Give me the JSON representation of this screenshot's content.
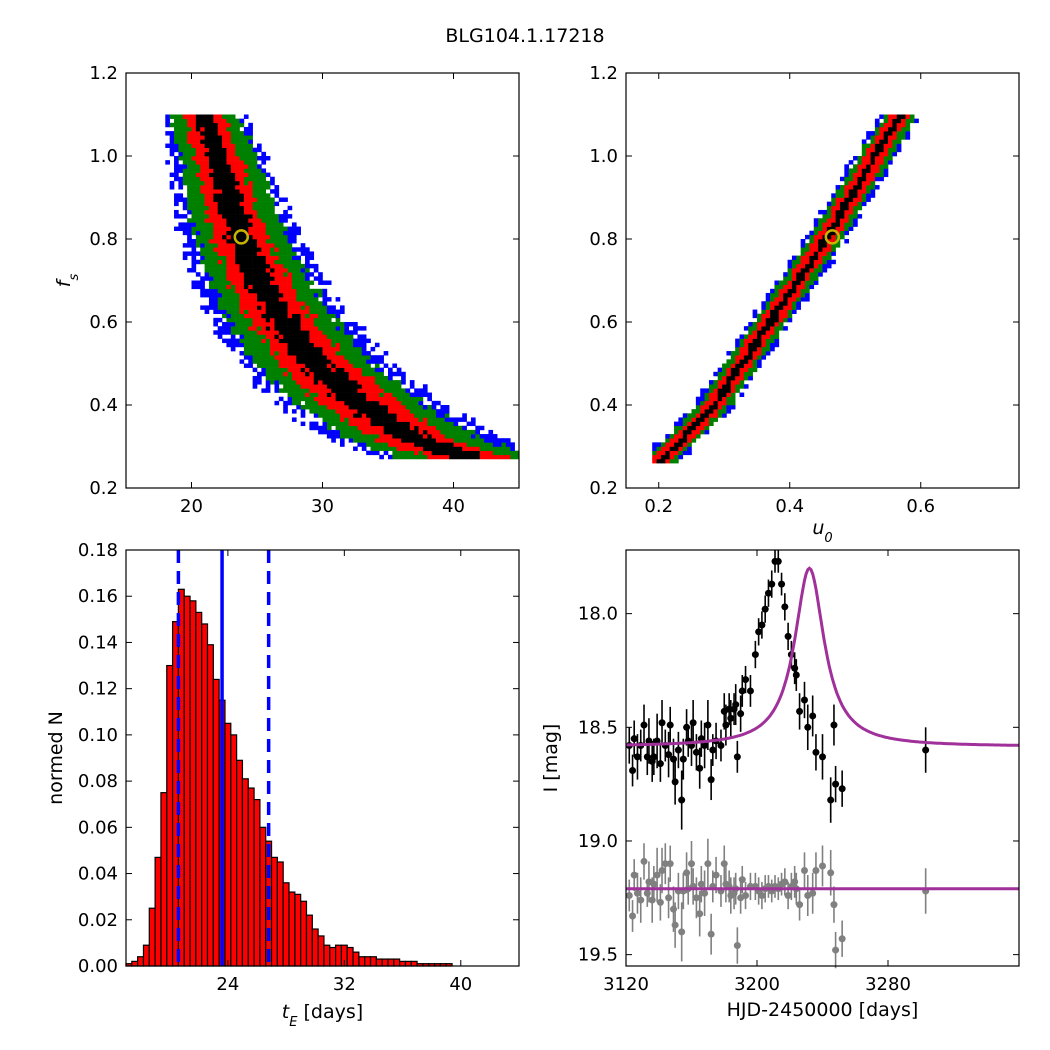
{
  "figure": {
    "title": "BLG104.1.17218"
  },
  "colors": {
    "level1": "#000000",
    "level2": "#ff0000",
    "level3": "#008000",
    "level4": "#0000ff",
    "best_fit": "#c8b400",
    "hist_fill": "#ff0000",
    "vline": "#0000ff",
    "model": "#a0309a",
    "data_main": "#000000",
    "data_resid": "#808080"
  },
  "chart_data": [
    {
      "id": "fs_vs_tE",
      "type": "heatmap",
      "xlim": [
        15,
        45
      ],
      "ylim": [
        0.2,
        1.2
      ],
      "xticks": [
        "20",
        "30",
        "40"
      ],
      "xtick_values": [
        20,
        30,
        40
      ],
      "yticks": [
        "0.2",
        "0.4",
        "0.6",
        "0.8",
        "1.0",
        "1.2"
      ],
      "ytick_values": [
        0.2,
        0.4,
        0.6,
        0.8,
        1.0,
        1.2
      ],
      "xlabel": "",
      "ylabel": "f_s",
      "grid": false,
      "band": {
        "x_center": [
          [
            1.1,
            21.0
          ],
          [
            1.0,
            22.0
          ],
          [
            0.9,
            22.9
          ],
          [
            0.8,
            23.8
          ],
          [
            0.7,
            25.2
          ],
          [
            0.6,
            27.0
          ],
          [
            0.5,
            29.4
          ],
          [
            0.4,
            33.0
          ],
          [
            0.32,
            37.0
          ],
          [
            0.27,
            41.5
          ]
        ],
        "half_width_levels": [
          0.7,
          1.5,
          2.5,
          3.3
        ],
        "x_range": [
          18.0,
          45.0
        ]
      },
      "best_fit": {
        "x": 23.8,
        "y": 0.805
      }
    },
    {
      "id": "fs_vs_u0",
      "type": "heatmap",
      "xlim": [
        0.15,
        0.75
      ],
      "ylim": [
        0.2,
        1.2
      ],
      "xticks": [
        "0.2",
        "0.4",
        "0.6"
      ],
      "xtick_values": [
        0.2,
        0.4,
        0.6
      ],
      "yticks": [
        "0.2",
        "0.4",
        "0.6",
        "0.8",
        "1.0",
        "1.2"
      ],
      "ytick_values": [
        0.2,
        0.4,
        0.6,
        0.8,
        1.0,
        1.2
      ],
      "xlabel": "u_0",
      "ylabel": "",
      "grid": false,
      "band": {
        "x_center": [
          [
            0.26,
            0.2
          ],
          [
            0.4,
            0.285
          ],
          [
            0.6,
            0.37
          ],
          [
            0.8,
            0.455
          ],
          [
            1.0,
            0.53
          ],
          [
            1.1,
            0.57
          ]
        ],
        "half_width_levels": [
          0.006,
          0.016,
          0.025,
          0.033
        ],
        "x_range": [
          0.19,
          0.62
        ]
      },
      "best_fit": {
        "x": 0.465,
        "y": 0.805
      }
    },
    {
      "id": "tE_histogram",
      "type": "bar",
      "xlim": [
        17,
        44
      ],
      "ylim": [
        0,
        0.18
      ],
      "xticks": [
        "24",
        "32",
        "40"
      ],
      "xtick_values": [
        24,
        32,
        40
      ],
      "yticks": [
        "0.00",
        "0.02",
        "0.04",
        "0.06",
        "0.08",
        "0.10",
        "0.12",
        "0.14",
        "0.16",
        "0.18"
      ],
      "ytick_values": [
        0,
        0.02,
        0.04,
        0.06,
        0.08,
        0.1,
        0.12,
        0.14,
        0.16,
        0.18
      ],
      "xlabel": "t_E  [days]",
      "ylabel": "normed N",
      "grid": false,
      "bin_start": 17.0,
      "bin_width": 0.4,
      "values": [
        0.001,
        0.002,
        0.004,
        0.009,
        0.025,
        0.047,
        0.075,
        0.13,
        0.149,
        0.163,
        0.16,
        0.158,
        0.153,
        0.148,
        0.139,
        0.124,
        0.115,
        0.105,
        0.1,
        0.089,
        0.081,
        0.077,
        0.072,
        0.06,
        0.054,
        0.047,
        0.045,
        0.036,
        0.032,
        0.031,
        0.028,
        0.022,
        0.016,
        0.013,
        0.009,
        0.008,
        0.009,
        0.009,
        0.008,
        0.006,
        0.004,
        0.004,
        0.004,
        0.003,
        0.003,
        0.003,
        0.003,
        0.002,
        0.002,
        0.002,
        0.001,
        0.001,
        0.001,
        0.001,
        0.001,
        0.001,
        0.0,
        0.0,
        0.0,
        0.0,
        0.0,
        0.0,
        0.0,
        0.0,
        0.0,
        0.0,
        0.0
      ],
      "vlines": [
        {
          "x": 20.6,
          "style": "dashed"
        },
        {
          "x": 23.6,
          "style": "solid"
        },
        {
          "x": 26.8,
          "style": "dashed"
        }
      ]
    },
    {
      "id": "lightcurve",
      "type": "scatter",
      "xlim": [
        3120,
        3360
      ],
      "ylim": [
        19.55,
        17.72
      ],
      "xticks": [
        "3120",
        "3200",
        "3280"
      ],
      "xtick_values": [
        3120,
        3200,
        3280
      ],
      "yticks": [
        "18.0",
        "18.5",
        "19.0",
        "19.5"
      ],
      "ytick_values": [
        18.0,
        18.5,
        19.0,
        19.5
      ],
      "xlabel": "HJD-2450000 [days]",
      "ylabel": "I [mag]",
      "grid": false,
      "model": {
        "t0": 3232,
        "baseline": 18.585,
        "peak": 17.8,
        "width": 11,
        "resid_level": 19.21
      },
      "main_points": [
        [
          3122,
          18.58,
          0.08
        ],
        [
          3124,
          18.69,
          0.07
        ],
        [
          3125,
          18.55,
          0.08
        ],
        [
          3127,
          18.63,
          0.1
        ],
        [
          3129,
          18.58,
          0.07
        ],
        [
          3131,
          18.49,
          0.09
        ],
        [
          3133,
          18.63,
          0.08
        ],
        [
          3134,
          18.56,
          0.1
        ],
        [
          3136,
          18.65,
          0.09
        ],
        [
          3137,
          18.63,
          0.08
        ],
        [
          3139,
          18.56,
          0.12
        ],
        [
          3141,
          18.66,
          0.08
        ],
        [
          3142,
          18.48,
          0.1
        ],
        [
          3144,
          18.58,
          0.07
        ],
        [
          3146,
          18.62,
          0.1
        ],
        [
          3147,
          18.49,
          0.08
        ],
        [
          3149,
          18.64,
          0.09
        ],
        [
          3150,
          18.74,
          0.1
        ],
        [
          3152,
          18.6,
          0.08
        ],
        [
          3154,
          18.82,
          0.13
        ],
        [
          3155,
          18.64,
          0.09
        ],
        [
          3157,
          18.5,
          0.08
        ],
        [
          3158,
          18.56,
          0.07
        ],
        [
          3160,
          18.58,
          0.09
        ],
        [
          3161,
          18.48,
          0.1
        ],
        [
          3163,
          18.61,
          0.08
        ],
        [
          3165,
          18.68,
          0.09
        ],
        [
          3166,
          18.55,
          0.08
        ],
        [
          3168,
          18.58,
          0.1
        ],
        [
          3170,
          18.49,
          0.11
        ],
        [
          3172,
          18.73,
          0.09
        ],
        [
          3173,
          18.6,
          0.07
        ],
        [
          3175,
          18.56,
          0.08
        ],
        [
          3178,
          18.58,
          0.07
        ],
        [
          3180,
          18.43,
          0.08
        ],
        [
          3181,
          18.49,
          0.09
        ],
        [
          3183,
          18.42,
          0.07
        ],
        [
          3184,
          18.46,
          0.08
        ],
        [
          3186,
          18.42,
          0.07
        ],
        [
          3187,
          18.4,
          0.09
        ],
        [
          3188,
          18.63,
          0.07
        ],
        [
          3190,
          18.44,
          0.08
        ],
        [
          3191,
          18.34,
          0.07
        ],
        [
          3193,
          18.29,
          0.06
        ],
        [
          3196,
          18.34,
          0.07
        ],
        [
          3199,
          18.18,
          0.06
        ],
        [
          3201,
          18.08,
          0.06
        ],
        [
          3203,
          18.05,
          0.06
        ],
        [
          3205,
          17.98,
          0.06
        ],
        [
          3207,
          17.91,
          0.06
        ],
        [
          3209,
          17.87,
          0.06
        ],
        [
          3211,
          17.77,
          0.05
        ],
        [
          3213,
          17.77,
          0.05
        ],
        [
          3215,
          17.87,
          0.05
        ],
        [
          3217,
          17.97,
          0.06
        ],
        [
          3219,
          18.1,
          0.06
        ],
        [
          3221,
          18.18,
          0.06
        ],
        [
          3223,
          18.24,
          0.07
        ],
        [
          3224,
          18.27,
          0.07
        ],
        [
          3226,
          18.43,
          0.08
        ],
        [
          3229,
          18.38,
          0.08
        ],
        [
          3231,
          18.5,
          0.1
        ],
        [
          3234,
          18.45,
          0.09
        ],
        [
          3236,
          18.61,
          0.08
        ],
        [
          3245,
          18.82,
          0.1
        ],
        [
          3240,
          18.63,
          0.1
        ],
        [
          3247,
          18.49,
          0.09
        ],
        [
          3248,
          18.75,
          0.08
        ],
        [
          3252,
          18.77,
          0.08
        ],
        [
          3303,
          18.6,
          0.1
        ]
      ],
      "resid_points": [
        [
          3122,
          19.24,
          0.07
        ],
        [
          3124,
          19.33,
          0.07
        ],
        [
          3125,
          19.15,
          0.07
        ],
        [
          3127,
          19.23,
          0.09
        ],
        [
          3129,
          19.26,
          0.1
        ],
        [
          3131,
          19.09,
          0.08
        ],
        [
          3133,
          19.23,
          0.06
        ],
        [
          3134,
          19.18,
          0.09
        ],
        [
          3136,
          19.26,
          0.1
        ],
        [
          3137,
          19.19,
          0.08
        ],
        [
          3139,
          19.15,
          0.12
        ],
        [
          3141,
          19.27,
          0.08
        ],
        [
          3142,
          19.13,
          0.1
        ],
        [
          3144,
          19.1,
          0.09
        ],
        [
          3146,
          19.25,
          0.09
        ],
        [
          3147,
          19.1,
          0.08
        ],
        [
          3149,
          19.3,
          0.1
        ],
        [
          3150,
          19.37,
          0.1
        ],
        [
          3152,
          19.22,
          0.08
        ],
        [
          3154,
          19.4,
          0.13
        ],
        [
          3155,
          19.22,
          0.08
        ],
        [
          3157,
          19.14,
          0.09
        ],
        [
          3158,
          19.21,
          0.07
        ],
        [
          3160,
          19.1,
          0.1
        ],
        [
          3161,
          19.2,
          0.08
        ],
        [
          3163,
          19.25,
          0.09
        ],
        [
          3165,
          19.32,
          0.1
        ],
        [
          3166,
          19.19,
          0.08
        ],
        [
          3168,
          19.23,
          0.1
        ],
        [
          3170,
          19.1,
          0.11
        ],
        [
          3172,
          19.41,
          0.09
        ],
        [
          3173,
          19.2,
          0.07
        ],
        [
          3175,
          19.15,
          0.08
        ],
        [
          3178,
          19.22,
          0.07
        ],
        [
          3180,
          19.1,
          0.08
        ],
        [
          3181,
          19.19,
          0.08
        ],
        [
          3183,
          19.2,
          0.07
        ],
        [
          3184,
          19.24,
          0.08
        ],
        [
          3186,
          19.23,
          0.07
        ],
        [
          3187,
          19.21,
          0.07
        ],
        [
          3188,
          19.46,
          0.08
        ],
        [
          3190,
          19.25,
          0.07
        ],
        [
          3191,
          19.17,
          0.06
        ],
        [
          3193,
          19.24,
          0.06
        ],
        [
          3196,
          19.2,
          0.06
        ],
        [
          3199,
          19.2,
          0.06
        ],
        [
          3201,
          19.22,
          0.06
        ],
        [
          3203,
          19.24,
          0.06
        ],
        [
          3205,
          19.21,
          0.06
        ],
        [
          3207,
          19.2,
          0.05
        ],
        [
          3209,
          19.22,
          0.05
        ],
        [
          3211,
          19.2,
          0.05
        ],
        [
          3213,
          19.21,
          0.05
        ],
        [
          3215,
          19.19,
          0.05
        ],
        [
          3217,
          19.18,
          0.06
        ],
        [
          3219,
          19.24,
          0.06
        ],
        [
          3221,
          19.2,
          0.06
        ],
        [
          3223,
          19.18,
          0.07
        ],
        [
          3224,
          19.21,
          0.07
        ],
        [
          3226,
          19.28,
          0.07
        ],
        [
          3229,
          19.13,
          0.08
        ],
        [
          3231,
          19.24,
          0.09
        ],
        [
          3234,
          19.23,
          0.09
        ],
        [
          3236,
          19.13,
          0.08
        ],
        [
          3240,
          19.11,
          0.09
        ],
        [
          3245,
          19.14,
          0.1
        ],
        [
          3247,
          19.28,
          0.08
        ],
        [
          3248,
          19.48,
          0.08
        ],
        [
          3252,
          19.43,
          0.08
        ],
        [
          3303,
          19.22,
          0.1
        ]
      ]
    }
  ]
}
